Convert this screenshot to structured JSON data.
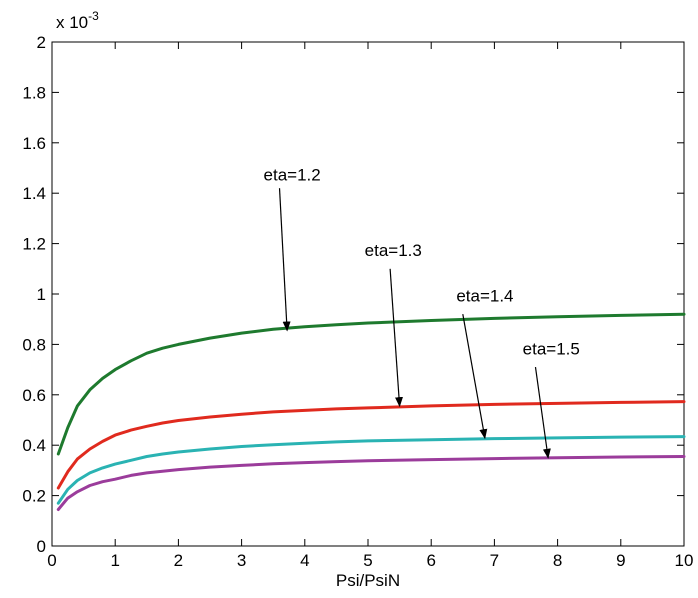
{
  "chart_data": {
    "type": "line",
    "title": "",
    "xlabel": "Psi/PsiN",
    "ylabel": "",
    "y_multiplier": {
      "base": "x 10",
      "exponent": "-3"
    },
    "xlim": [
      0,
      10
    ],
    "ylim": [
      0,
      2
    ],
    "x_ticks": [
      0,
      1,
      2,
      3,
      4,
      5,
      6,
      7,
      8,
      9,
      10
    ],
    "x_tick_labels": [
      "0",
      "1",
      "2",
      "3",
      "4",
      "5",
      "6",
      "7",
      "8",
      "9",
      "10"
    ],
    "y_ticks": [
      0,
      0.2,
      0.4,
      0.6,
      0.8,
      1,
      1.2,
      1.4,
      1.6,
      1.8,
      2
    ],
    "y_tick_labels": [
      "0",
      "0.2",
      "0.4",
      "0.6",
      "0.8",
      "1",
      "1.2",
      "1.4",
      "1.6",
      "1.8",
      "2"
    ],
    "grid": false,
    "legend": "none",
    "x": [
      0.1,
      0.25,
      0.4,
      0.6,
      0.8,
      1,
      1.25,
      1.5,
      1.75,
      2,
      2.5,
      3,
      3.5,
      4,
      4.5,
      5,
      6,
      7,
      8,
      9,
      10
    ],
    "series": [
      {
        "color": "#1e7a2e",
        "values": [
          0.365,
          0.47,
          0.555,
          0.62,
          0.665,
          0.7,
          0.735,
          0.765,
          0.785,
          0.8,
          0.825,
          0.845,
          0.86,
          0.87,
          0.878,
          0.885,
          0.895,
          0.903,
          0.91,
          0.915,
          0.92
        ]
      },
      {
        "color": "#e02a1e",
        "values": [
          0.23,
          0.295,
          0.345,
          0.385,
          0.415,
          0.44,
          0.46,
          0.475,
          0.488,
          0.498,
          0.512,
          0.523,
          0.532,
          0.538,
          0.544,
          0.548,
          0.556,
          0.562,
          0.566,
          0.57,
          0.573
        ]
      },
      {
        "color": "#2ab3b3",
        "values": [
          0.17,
          0.225,
          0.26,
          0.29,
          0.31,
          0.325,
          0.34,
          0.355,
          0.365,
          0.373,
          0.385,
          0.395,
          0.402,
          0.408,
          0.413,
          0.417,
          0.422,
          0.426,
          0.429,
          0.432,
          0.434
        ]
      },
      {
        "color": "#9b3c9b",
        "values": [
          0.145,
          0.19,
          0.215,
          0.24,
          0.255,
          0.265,
          0.28,
          0.29,
          0.297,
          0.303,
          0.313,
          0.32,
          0.326,
          0.331,
          0.335,
          0.338,
          0.343,
          0.347,
          0.35,
          0.353,
          0.355
        ]
      }
    ],
    "annotations": [
      {
        "text": "eta=1.2",
        "text_x": 3.8,
        "text_y": 1.45,
        "arrow_from": [
          3.6,
          1.42
        ],
        "arrow_to": [
          3.72,
          0.855
        ]
      },
      {
        "text": "eta=1.3",
        "text_x": 5.4,
        "text_y": 1.15,
        "arrow_from": [
          5.35,
          1.1
        ],
        "arrow_to": [
          5.5,
          0.555
        ]
      },
      {
        "text": "eta=1.4",
        "text_x": 6.85,
        "text_y": 0.97,
        "arrow_from": [
          6.5,
          0.92
        ],
        "arrow_to": [
          6.85,
          0.428
        ]
      },
      {
        "text": "eta=1.5",
        "text_x": 7.9,
        "text_y": 0.76,
        "arrow_from": [
          7.65,
          0.71
        ],
        "arrow_to": [
          7.85,
          0.35
        ]
      }
    ]
  }
}
